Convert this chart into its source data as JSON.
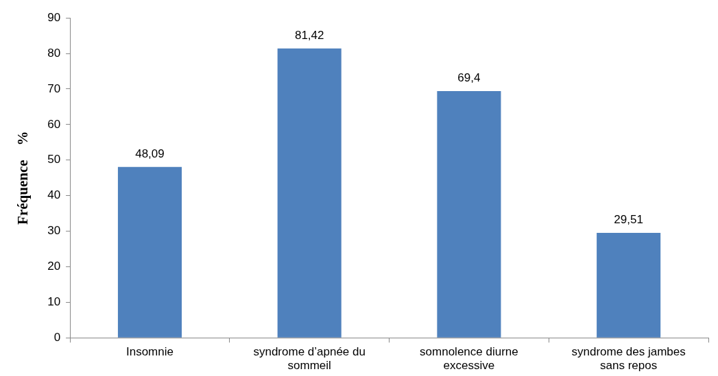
{
  "chart_data": {
    "type": "bar",
    "ylabel": "Fréquence    %",
    "categories": [
      "Insomnie",
      "syndrome d’apnée du sommeil",
      "somnolence diurne excessive",
      "syndrome des jambes sans repos"
    ],
    "values": [
      48.09,
      81.42,
      69.4,
      29.51
    ],
    "value_labels": [
      "48,09",
      "81,42",
      "69,4",
      "29,51"
    ],
    "color": "#4f81bd",
    "ylim": [
      0,
      90
    ],
    "yticks": [
      0,
      10,
      20,
      30,
      40,
      50,
      60,
      70,
      80,
      90
    ],
    "grid": false,
    "legend": false
  }
}
